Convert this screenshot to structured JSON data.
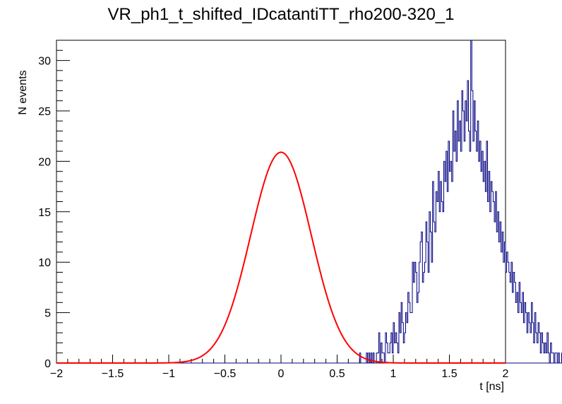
{
  "chart_data": {
    "type": "histogram",
    "title": "VR_ph1_t_shifted_IDcatantiTT_rho200-320_1",
    "xlabel": "t [ns]",
    "ylabel": "N events",
    "xlim": [
      -2,
      2
    ],
    "ylim": [
      0,
      32
    ],
    "x_ticks": [
      {
        "value": -2,
        "label": "−2"
      },
      {
        "value": -1.5,
        "label": "−1.5"
      },
      {
        "value": -1,
        "label": "−1"
      },
      {
        "value": -0.5,
        "label": "−0.5"
      },
      {
        "value": 0,
        "label": "0"
      },
      {
        "value": 0.5,
        "label": "0.5"
      },
      {
        "value": 1,
        "label": "1"
      },
      {
        "value": 1.5,
        "label": "1.5"
      },
      {
        "value": 2,
        "label": "2"
      }
    ],
    "y_ticks": [
      {
        "value": 0,
        "label": "0"
      },
      {
        "value": 5,
        "label": "5"
      },
      {
        "value": 10,
        "label": "10"
      },
      {
        "value": 15,
        "label": "15"
      },
      {
        "value": 20,
        "label": "20"
      },
      {
        "value": 25,
        "label": "25"
      },
      {
        "value": 30,
        "label": "30"
      }
    ],
    "grid": false,
    "series": [
      {
        "kind": "histogram",
        "color": "#000080",
        "bin_width": 0.01,
        "bin_start": -2,
        "counts": [
          0,
          0,
          0,
          0,
          0,
          0,
          0,
          0,
          0,
          0,
          0,
          0,
          0,
          0,
          0,
          0,
          0,
          0,
          0,
          0,
          0,
          0,
          0,
          0,
          0,
          0,
          0,
          0,
          0,
          0,
          0,
          0,
          0,
          0,
          0,
          0,
          0,
          0,
          0,
          0,
          0,
          0,
          0,
          0,
          0,
          0,
          0,
          0,
          0,
          0,
          0,
          0,
          0,
          0,
          0,
          0,
          0,
          0,
          0,
          0,
          0,
          0,
          0,
          0,
          0,
          0,
          0,
          0,
          0,
          0,
          0,
          0,
          0,
          0,
          0,
          0,
          0,
          0,
          0,
          0,
          0,
          0,
          0,
          0,
          0,
          0,
          0,
          0,
          0,
          0,
          0,
          0,
          0,
          0,
          0,
          0,
          0,
          0,
          0,
          0,
          0,
          0,
          0,
          0,
          0,
          0,
          0,
          0,
          0,
          0,
          0,
          0,
          0,
          0,
          0,
          0,
          0,
          0,
          0,
          0,
          0,
          0,
          0,
          0,
          0,
          0,
          0,
          0,
          0,
          0,
          0,
          0,
          0,
          0,
          0,
          0,
          0,
          0,
          0,
          0,
          0,
          0,
          0,
          0,
          0,
          0,
          0,
          0,
          0,
          0,
          0,
          0,
          0,
          0,
          0,
          0,
          0,
          0,
          0,
          0,
          0,
          0,
          0,
          0,
          0,
          0,
          0,
          0,
          0,
          0,
          0,
          0,
          0,
          0,
          0,
          0,
          0,
          0,
          0,
          0,
          0,
          0,
          0,
          0,
          0,
          0,
          0,
          0,
          0,
          0,
          0,
          0,
          0,
          0,
          0,
          0,
          0,
          0,
          0,
          0,
          0,
          0,
          0,
          0,
          0,
          0,
          0,
          0,
          0,
          0,
          0,
          0,
          0,
          0,
          0,
          0,
          0,
          0,
          0,
          0,
          0,
          0,
          0,
          0,
          0,
          0,
          0,
          0,
          0,
          0,
          0,
          0,
          0,
          0,
          0,
          0,
          0,
          0,
          0,
          0,
          0,
          0,
          0,
          0,
          0,
          0,
          0,
          0,
          0,
          0,
          0,
          0,
          0,
          0,
          0,
          0,
          0,
          0,
          0,
          0,
          0,
          0,
          0,
          0,
          0,
          0,
          0,
          0,
          0,
          0,
          1,
          0,
          0,
          0,
          0,
          0,
          1,
          0,
          1,
          0,
          1,
          0,
          1,
          0,
          0,
          1,
          1,
          3,
          0,
          2,
          1,
          1,
          0,
          3,
          2,
          1,
          1,
          2,
          3,
          1,
          4,
          2,
          3,
          2,
          1,
          5,
          3,
          6,
          4,
          2,
          3,
          5,
          4,
          7,
          6,
          5,
          5,
          10,
          8,
          10,
          9,
          6,
          7,
          10,
          12,
          13,
          8,
          9,
          10,
          14,
          12,
          9,
          15,
          13,
          10,
          18,
          14,
          13,
          17,
          16,
          19,
          15,
          18,
          16,
          15,
          20,
          18,
          21,
          17,
          22,
          19,
          20,
          18,
          25,
          21,
          23,
          20,
          26,
          22,
          24,
          21,
          27,
          25,
          22,
          26,
          24,
          28,
          23,
          21,
          32,
          27,
          22,
          26,
          23,
          21,
          24,
          20,
          22,
          19,
          21,
          18,
          20,
          17,
          22,
          16,
          19,
          15,
          18,
          17,
          16,
          14,
          17,
          13,
          15,
          12,
          14,
          11,
          13,
          10,
          12,
          9,
          11,
          10,
          9,
          8,
          10,
          7,
          9,
          8,
          6,
          7,
          5,
          8,
          6,
          5,
          7,
          4,
          6,
          5,
          3,
          5,
          4,
          3,
          6,
          4,
          2,
          5,
          3,
          2,
          4,
          3,
          1,
          3,
          2,
          1,
          2,
          1,
          3,
          1,
          0,
          2,
          1,
          1,
          0,
          1,
          1,
          0,
          1,
          0,
          0,
          1,
          0,
          0,
          0,
          0,
          0,
          1,
          0,
          0,
          0,
          1,
          0,
          1,
          0,
          0,
          0,
          0,
          0,
          0,
          0,
          0,
          0,
          0,
          0,
          0,
          0,
          0,
          0,
          0,
          0,
          0,
          0,
          0,
          0,
          0,
          0,
          0,
          0,
          0,
          0,
          0,
          0,
          0,
          0,
          0,
          0,
          0,
          0,
          0,
          0,
          0,
          0,
          0,
          0,
          0,
          0,
          0,
          0,
          0,
          0,
          0,
          0,
          0,
          0,
          0,
          0,
          0,
          0,
          0,
          0,
          0,
          0,
          0,
          0,
          0,
          0,
          0,
          0,
          0,
          0,
          0,
          0,
          0,
          0,
          0,
          0,
          0,
          0,
          0,
          0,
          0,
          0,
          0,
          0,
          0,
          0,
          0,
          0,
          0,
          0,
          0,
          0,
          0,
          0,
          0,
          0,
          0,
          0,
          0,
          0,
          0,
          0,
          0,
          0,
          0,
          0,
          0,
          0,
          0,
          0,
          0,
          0,
          0,
          0,
          0,
          0,
          0,
          0,
          0,
          0,
          0,
          0,
          0,
          0,
          0,
          0,
          0,
          0,
          0,
          0,
          0,
          0,
          0,
          0,
          0,
          0,
          0,
          0,
          0,
          0,
          0,
          0,
          0,
          0,
          0,
          0,
          0,
          0,
          0,
          0,
          0,
          0
        ]
      },
      {
        "kind": "gaussian-fit",
        "color": "#ff0000",
        "amplitude": 20.9,
        "mean": 0.0,
        "sigma": 0.27
      }
    ]
  }
}
